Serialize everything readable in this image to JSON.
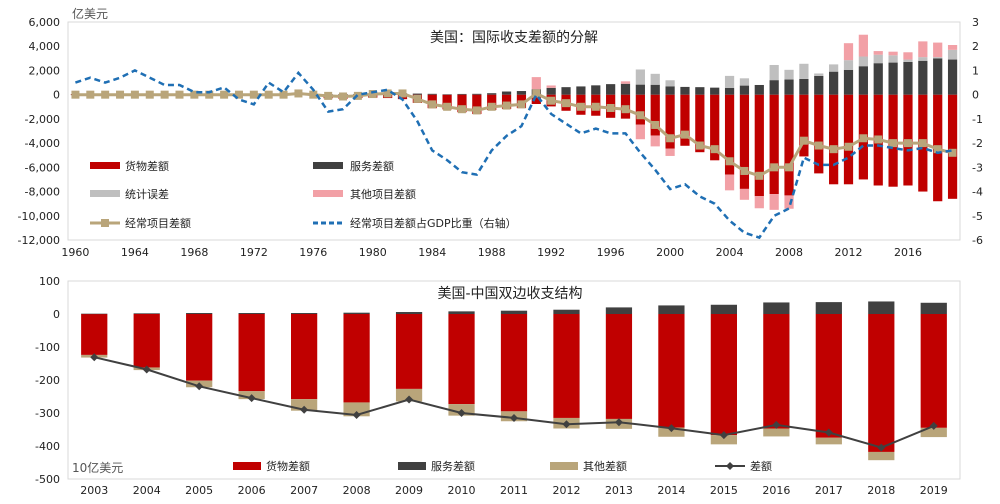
{
  "chart_data": [
    {
      "type": "bar",
      "title": "美国：国际收支差额的分解",
      "ylabel": "亿美元",
      "ylim": [
        -12000,
        6000
      ],
      "y2lim": [
        -6,
        3
      ],
      "yticks": [
        6000,
        4000,
        2000,
        0,
        -2000,
        -4000,
        -6000,
        -8000,
        -10000,
        -12000
      ],
      "yticklabels": [
        "6,000",
        "4,000",
        "2,000",
        "0",
        "-2,000",
        "-4,000",
        "-6,000",
        "-8,000",
        "-10,000",
        "-12,000"
      ],
      "y2ticks": [
        3,
        2,
        1,
        0,
        -1,
        -2,
        -3,
        -4,
        -5,
        -6
      ],
      "y2ticklabels": [
        "3",
        "2",
        "1",
        "0",
        "-1",
        "-2",
        "-3",
        "-4",
        "-5",
        "-6"
      ],
      "xticklabels": [
        "1960",
        "1964",
        "1968",
        "1972",
        "1976",
        "1980",
        "1984",
        "1988",
        "1992",
        "1996",
        "2000",
        "2004",
        "2008",
        "2012",
        "2016"
      ],
      "legend_placement": "lower-left",
      "colors": {
        "goods": "#c00000",
        "services": "#404040",
        "errors": "#bfbfbf",
        "other": "#f2a0a6",
        "current": "#b9a57a",
        "gdp": "#1f6fb4"
      },
      "legend": {
        "goods": "货物差额",
        "services": "服务差额",
        "errors": "统计误差",
        "other": "其他项目差额",
        "current": "经常项目差额",
        "gdp": "经常项目差额占GDP比重（右轴）"
      },
      "years": [
        1960,
        1961,
        1962,
        1963,
        1964,
        1965,
        1966,
        1967,
        1968,
        1969,
        1970,
        1971,
        1972,
        1973,
        1974,
        1975,
        1976,
        1977,
        1978,
        1979,
        1980,
        1981,
        1982,
        1983,
        1984,
        1985,
        1986,
        1987,
        1988,
        1989,
        1990,
        1991,
        1992,
        1993,
        1994,
        1995,
        1996,
        1997,
        1998,
        1999,
        2000,
        2001,
        2002,
        2003,
        2004,
        2005,
        2006,
        2007,
        2008,
        2009,
        2010,
        2011,
        2012,
        2013,
        2014,
        2015,
        2016,
        2017,
        2018,
        2019
      ],
      "series": [
        {
          "name": "货物差额",
          "values": [
            50,
            60,
            45,
            50,
            70,
            50,
            40,
            30,
            0,
            20,
            50,
            -20,
            -60,
            10,
            -50,
            90,
            -90,
            -300,
            -340,
            -280,
            -250,
            -280,
            -370,
            -680,
            -1120,
            -1220,
            -1450,
            -1600,
            -1270,
            -1180,
            -1110,
            -770,
            -970,
            -1330,
            -1660,
            -1740,
            -1910,
            -1980,
            -2480,
            -3370,
            -4460,
            -4220,
            -4750,
            -5420,
            -6600,
            -7780,
            -8380,
            -8210,
            -8320,
            -5100,
            -6500,
            -7400,
            -7400,
            -7000,
            -7500,
            -7600,
            -7500,
            -8000,
            -8800,
            -8600
          ]
        },
        {
          "name": "服务差额",
          "values": [
            -10,
            -5,
            0,
            10,
            20,
            30,
            10,
            0,
            10,
            10,
            0,
            20,
            30,
            10,
            20,
            30,
            40,
            40,
            50,
            60,
            70,
            100,
            120,
            90,
            70,
            30,
            60,
            70,
            120,
            260,
            300,
            450,
            560,
            620,
            680,
            770,
            870,
            900,
            830,
            820,
            690,
            640,
            620,
            580,
            550,
            750,
            800,
            1200,
            1250,
            1300,
            1550,
            1900,
            2050,
            2350,
            2600,
            2650,
            2700,
            2800,
            3000,
            2900
          ]
        },
        {
          "name": "统计误差",
          "values": [
            0,
            0,
            0,
            0,
            0,
            0,
            0,
            0,
            0,
            0,
            0,
            0,
            0,
            0,
            0,
            0,
            0,
            0,
            0,
            0,
            0,
            0,
            0,
            0,
            0,
            0,
            0,
            0,
            0,
            0,
            0,
            0,
            0,
            0,
            0,
            0,
            0,
            0,
            0,
            0,
            0,
            0,
            0,
            0,
            0,
            0,
            0,
            0,
            0,
            0,
            0,
            0,
            0,
            0,
            0,
            0,
            0,
            0,
            0,
            0
          ]
        },
        {
          "name": "其他项目差额",
          "values": [
            0,
            0,
            0,
            0,
            0,
            0,
            0,
            0,
            0,
            0,
            0,
            0,
            0,
            0,
            0,
            0,
            0,
            0,
            0,
            0,
            0,
            0,
            0,
            0,
            0,
            0,
            0,
            0,
            0,
            0,
            0,
            0,
            0,
            0,
            0,
            0,
            0,
            0,
            0,
            0,
            0,
            0,
            0,
            0,
            0,
            0,
            0,
            0,
            0,
            0,
            0,
            0,
            0,
            0,
            0,
            0,
            0,
            0,
            0,
            0
          ]
        },
        {
          "name": "经常项目差额",
          "values": [
            0,
            0,
            0,
            0,
            0,
            0,
            0,
            0,
            0,
            0,
            0,
            0,
            0,
            0,
            0,
            100,
            0,
            -100,
            -150,
            -100,
            50,
            100,
            100,
            -350,
            -800,
            -1000,
            -1200,
            -1300,
            -1000,
            -900,
            -800,
            100,
            -500,
            -700,
            -1000,
            -1000,
            -1100,
            -1200,
            -1700,
            -2500,
            -3600,
            -3300,
            -4200,
            -4500,
            -5500,
            -6300,
            -6700,
            -6000,
            -6000,
            -3800,
            -4200,
            -4500,
            -4300,
            -3600,
            -3700,
            -4000,
            -4000,
            -4000,
            -4500,
            -4800
          ]
        },
        {
          "name": "经常项目差额占GDP比重（右轴）",
          "values": [
            0.5,
            0.7,
            0.5,
            0.7,
            1.0,
            0.7,
            0.4,
            0.4,
            0.1,
            0.1,
            0.3,
            -0.2,
            -0.4,
            0.5,
            0.1,
            0.9,
            0.2,
            -0.7,
            -0.6,
            0.0,
            0.1,
            0.2,
            -0.2,
            -1.1,
            -2.3,
            -2.7,
            -3.2,
            -3.3,
            -2.3,
            -1.7,
            -1.3,
            0.0,
            -0.8,
            -1.2,
            -1.6,
            -1.4,
            -1.6,
            -1.6,
            -2.4,
            -3.1,
            -3.9,
            -3.7,
            -4.2,
            -4.5,
            -5.2,
            -5.7,
            -5.9,
            -5.0,
            -4.7,
            -2.6,
            -2.9,
            -2.9,
            -2.6,
            -2.1,
            -2.1,
            -2.2,
            -2.3,
            -2.2,
            -2.4,
            -2.3
          ]
        }
      ],
      "errors_visible": {
        "1998": 1250,
        "1999": 900,
        "2000": 500,
        "2004": 1000,
        "2005": 600,
        "2007": 1250,
        "2008": 800,
        "2009": 1250,
        "2010": 200,
        "2011": 600,
        "2012": 800,
        "2013": 800,
        "2014": 700,
        "2015": 600,
        "2016": 200,
        "2017": 300,
        "2018": 100,
        "2019": 800
      },
      "other_visible": {
        "1991": 1000,
        "1992": 200,
        "1997": 200,
        "1998": -1200,
        "1999": -900,
        "2000": -600,
        "2004": -1300,
        "2005": -900,
        "2006": -1000,
        "2007": -1300,
        "2008": -1100,
        "2012": 1400,
        "2013": 1800,
        "2014": 300,
        "2015": 300,
        "2016": 600,
        "2017": 1300,
        "2018": 1200,
        "2019": 400
      }
    },
    {
      "type": "bar",
      "title": "美国-中国双边收支结构",
      "ylabel": "10亿美元",
      "ylim": [
        -500,
        100
      ],
      "yticks": [
        100,
        0,
        -100,
        -200,
        -300,
        -400,
        -500
      ],
      "yticklabels": [
        "100",
        "0",
        "-100",
        "-200",
        "-300",
        "-400",
        "-500"
      ],
      "categories": [
        "2003",
        "2004",
        "2005",
        "2006",
        "2007",
        "2008",
        "2009",
        "2010",
        "2011",
        "2012",
        "2013",
        "2014",
        "2015",
        "2016",
        "2017",
        "2018",
        "2019"
      ],
      "legend_placement": "bottom",
      "colors": {
        "goods": "#c00000",
        "services": "#404040",
        "other": "#b9a57a",
        "net": "#404040"
      },
      "series": [
        {
          "name": "货物差额",
          "values": [
            -124,
            -162,
            -202,
            -234,
            -258,
            -268,
            -227,
            -273,
            -295,
            -315,
            -318,
            -344,
            -367,
            -347,
            -375,
            -418,
            -345
          ]
        },
        {
          "name": "服务差额",
          "values": [
            1,
            2,
            3,
            3,
            3,
            4,
            6,
            8,
            10,
            13,
            20,
            26,
            28,
            35,
            36,
            38,
            34
          ]
        },
        {
          "name": "其他差额",
          "values": [
            -8,
            -8,
            -20,
            -24,
            -35,
            -42,
            -38,
            -35,
            -30,
            -32,
            -30,
            -28,
            -28,
            -24,
            -20,
            -25,
            -28
          ]
        },
        {
          "name": "差额",
          "values": [
            -131,
            -168,
            -219,
            -255,
            -290,
            -306,
            -259,
            -300,
            -315,
            -334,
            -328,
            -346,
            -367,
            -336,
            -359,
            -405,
            -339
          ]
        }
      ]
    }
  ]
}
